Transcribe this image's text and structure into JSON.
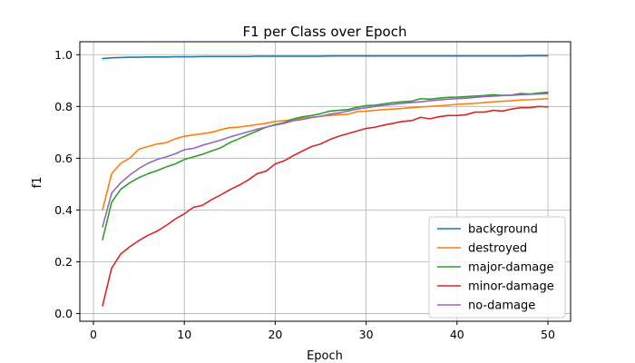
{
  "chart_data": {
    "type": "line",
    "title": "F1 per Class over Epoch",
    "xlabel": "Epoch",
    "ylabel": "f1",
    "xlim": [
      -1.5,
      52.5
    ],
    "ylim": [
      -0.03,
      1.05
    ],
    "xticks": [
      0,
      10,
      20,
      30,
      40,
      50
    ],
    "yticks": [
      0.0,
      0.2,
      0.4,
      0.6,
      0.8,
      1.0
    ],
    "ytick_labels": [
      "0.0",
      "0.2",
      "0.4",
      "0.6",
      "0.8",
      "1.0"
    ],
    "grid": true,
    "legend_position": "lower-right",
    "x": [
      1,
      2,
      3,
      4,
      5,
      6,
      7,
      8,
      9,
      10,
      11,
      12,
      13,
      14,
      15,
      16,
      17,
      18,
      19,
      20,
      21,
      22,
      23,
      24,
      25,
      26,
      27,
      28,
      29,
      30,
      31,
      32,
      33,
      34,
      35,
      36,
      37,
      38,
      39,
      40,
      41,
      42,
      43,
      44,
      45,
      46,
      47,
      48,
      49,
      50
    ],
    "series": [
      {
        "name": "background",
        "color": "#1f77b4",
        "values": [
          0.985,
          0.988,
          0.989,
          0.99,
          0.99,
          0.991,
          0.991,
          0.991,
          0.992,
          0.992,
          0.992,
          0.993,
          0.993,
          0.993,
          0.993,
          0.993,
          0.993,
          0.994,
          0.994,
          0.994,
          0.994,
          0.994,
          0.994,
          0.994,
          0.994,
          0.995,
          0.995,
          0.995,
          0.995,
          0.995,
          0.995,
          0.995,
          0.995,
          0.995,
          0.995,
          0.995,
          0.995,
          0.995,
          0.995,
          0.995,
          0.995,
          0.995,
          0.995,
          0.995,
          0.995,
          0.995,
          0.995,
          0.996,
          0.996,
          0.996
        ]
      },
      {
        "name": "destroyed",
        "color": "#ff7f0e",
        "values": [
          0.4,
          0.54,
          0.58,
          0.6,
          0.635,
          0.645,
          0.655,
          0.66,
          0.675,
          0.685,
          0.69,
          0.695,
          0.7,
          0.71,
          0.718,
          0.72,
          0.725,
          0.73,
          0.735,
          0.742,
          0.745,
          0.75,
          0.755,
          0.758,
          0.762,
          0.765,
          0.768,
          0.77,
          0.78,
          0.782,
          0.785,
          0.788,
          0.79,
          0.792,
          0.795,
          0.798,
          0.8,
          0.802,
          0.805,
          0.808,
          0.81,
          0.812,
          0.815,
          0.818,
          0.82,
          0.822,
          0.825,
          0.826,
          0.828,
          0.83
        ]
      },
      {
        "name": "major-damage",
        "color": "#2ca02c",
        "values": [
          0.285,
          0.43,
          0.48,
          0.505,
          0.525,
          0.54,
          0.552,
          0.566,
          0.578,
          0.595,
          0.605,
          0.615,
          0.628,
          0.64,
          0.66,
          0.675,
          0.69,
          0.705,
          0.72,
          0.73,
          0.738,
          0.752,
          0.76,
          0.765,
          0.772,
          0.782,
          0.785,
          0.788,
          0.797,
          0.803,
          0.805,
          0.81,
          0.815,
          0.818,
          0.82,
          0.83,
          0.828,
          0.832,
          0.835,
          0.836,
          0.838,
          0.84,
          0.842,
          0.845,
          0.843,
          0.844,
          0.85,
          0.848,
          0.852,
          0.855
        ]
      },
      {
        "name": "minor-damage",
        "color": "#d62728",
        "values": [
          0.03,
          0.175,
          0.23,
          0.258,
          0.282,
          0.302,
          0.318,
          0.34,
          0.365,
          0.385,
          0.41,
          0.418,
          0.44,
          0.458,
          0.478,
          0.495,
          0.515,
          0.54,
          0.55,
          0.578,
          0.59,
          0.61,
          0.628,
          0.645,
          0.655,
          0.672,
          0.685,
          0.695,
          0.705,
          0.715,
          0.72,
          0.728,
          0.735,
          0.742,
          0.745,
          0.758,
          0.752,
          0.76,
          0.765,
          0.765,
          0.768,
          0.778,
          0.778,
          0.785,
          0.782,
          0.79,
          0.795,
          0.795,
          0.8,
          0.798
        ]
      },
      {
        "name": "no-damage",
        "color": "#9467bd",
        "values": [
          0.335,
          0.465,
          0.505,
          0.535,
          0.56,
          0.58,
          0.595,
          0.605,
          0.617,
          0.633,
          0.638,
          0.65,
          0.66,
          0.67,
          0.682,
          0.692,
          0.702,
          0.712,
          0.72,
          0.728,
          0.735,
          0.745,
          0.75,
          0.757,
          0.762,
          0.77,
          0.775,
          0.782,
          0.79,
          0.795,
          0.8,
          0.805,
          0.808,
          0.812,
          0.815,
          0.818,
          0.822,
          0.825,
          0.828,
          0.83,
          0.832,
          0.835,
          0.838,
          0.84,
          0.842,
          0.843,
          0.845,
          0.847,
          0.848,
          0.85
        ]
      }
    ]
  }
}
